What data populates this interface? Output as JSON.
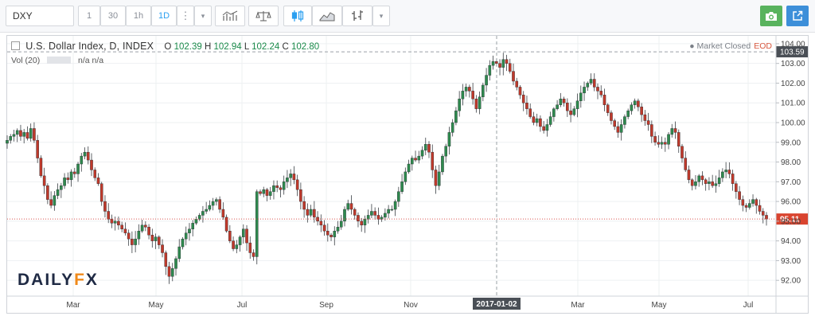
{
  "toolbar": {
    "symbol": "DXY",
    "intervals": [
      "1",
      "30",
      "1h",
      "1D"
    ],
    "active_interval": "1D",
    "more_glyph": "⋮",
    "dropdown_glyph": "▾"
  },
  "legend": {
    "title": "U.S. Dollar Index, D, INDEX",
    "ohlc": {
      "o_label": "O",
      "o": "102.39",
      "h_label": "H",
      "h": "102.94",
      "l_label": "L",
      "l": "102.24",
      "c_label": "C",
      "c": "102.80"
    },
    "volume": "Vol (20)",
    "volume_values": "n/a  n/a"
  },
  "market_status": {
    "text": "Market Closed",
    "eod": "EOD"
  },
  "logo": {
    "left": "DAILY",
    "x": "F",
    "right": "X"
  },
  "chart_data": {
    "type": "candlestick",
    "y_ticks": [
      92,
      93,
      94,
      95,
      96,
      97,
      98,
      99,
      100,
      101,
      102,
      103,
      104
    ],
    "ylim": [
      91.2,
      104.4
    ],
    "x_ticks": [
      "Mar",
      "May",
      "Jul",
      "Sep",
      "Nov",
      "2017-01-02",
      "Mar",
      "May",
      "Jul"
    ],
    "crosshair": {
      "x_label": "2017-01-02",
      "y_value": 103.59,
      "y_label": "103.59"
    },
    "last_price": {
      "value": 95.11,
      "label": "95.11"
    },
    "grid": true,
    "closes": [
      99.1,
      99.3,
      99.4,
      99.6,
      99.3,
      99.5,
      99.2,
      99.7,
      99.1,
      98.2,
      97.3,
      96.8,
      96.1,
      95.8,
      96.3,
      96.6,
      96.8,
      97.2,
      97.1,
      97.5,
      97.4,
      97.9,
      98.3,
      98.5,
      98.1,
      97.6,
      97.2,
      96.9,
      96.0,
      95.5,
      95.1,
      94.9,
      95.0,
      94.8,
      94.6,
      94.4,
      94.1,
      93.8,
      94.1,
      94.5,
      94.8,
      94.7,
      94.3,
      94.0,
      94.2,
      93.8,
      93.4,
      92.7,
      92.2,
      92.6,
      93.1,
      93.7,
      94.1,
      94.4,
      94.6,
      94.9,
      95.1,
      95.3,
      95.5,
      95.6,
      95.8,
      96.0,
      96.1,
      95.6,
      95.2,
      94.5,
      94.0,
      93.6,
      93.8,
      94.2,
      94.6,
      93.9,
      93.4,
      93.2,
      96.5,
      96.4,
      96.6,
      96.3,
      96.5,
      96.8,
      96.7,
      96.6,
      97.0,
      97.2,
      97.4,
      97.1,
      96.6,
      96.0,
      95.6,
      95.3,
      95.6,
      95.2,
      95.0,
      94.8,
      94.5,
      94.3,
      94.2,
      94.5,
      94.7,
      95.0,
      95.6,
      95.9,
      95.6,
      95.3,
      95.0,
      94.8,
      95.1,
      95.3,
      95.5,
      95.3,
      95.1,
      95.2,
      95.4,
      95.6,
      95.6,
      96.0,
      96.5,
      97.0,
      97.5,
      97.9,
      98.2,
      98.1,
      98.3,
      98.6,
      98.9,
      98.5,
      97.6,
      96.8,
      97.5,
      98.3,
      98.8,
      99.5,
      100.0,
      100.6,
      101.2,
      101.6,
      101.8,
      101.6,
      101.2,
      100.7,
      101.3,
      101.9,
      102.4,
      102.9,
      103.1,
      103.0,
      102.8,
      103.2,
      103.0,
      102.6,
      102.1,
      101.8,
      101.4,
      101.0,
      100.7,
      100.3,
      100.0,
      100.2,
      99.8,
      99.6,
      99.9,
      100.3,
      100.7,
      100.9,
      101.2,
      101.0,
      100.6,
      100.4,
      100.7,
      101.1,
      101.5,
      101.8,
      102.0,
      102.2,
      101.8,
      101.6,
      101.4,
      100.9,
      100.5,
      100.1,
      99.8,
      99.5,
      99.9,
      100.3,
      100.6,
      100.9,
      101.1,
      100.8,
      100.4,
      100.1,
      99.9,
      99.3,
      99.0,
      98.9,
      99.0,
      98.9,
      99.4,
      99.7,
      99.5,
      98.8,
      98.2,
      97.6,
      97.1,
      96.8,
      97.0,
      97.3,
      97.1,
      96.9,
      97.0,
      96.8,
      96.9,
      97.2,
      97.5,
      97.6,
      97.4,
      96.9,
      96.5,
      96.1,
      95.8,
      95.7,
      95.9,
      96.1,
      95.8,
      95.5,
      95.3,
      95.11
    ]
  }
}
